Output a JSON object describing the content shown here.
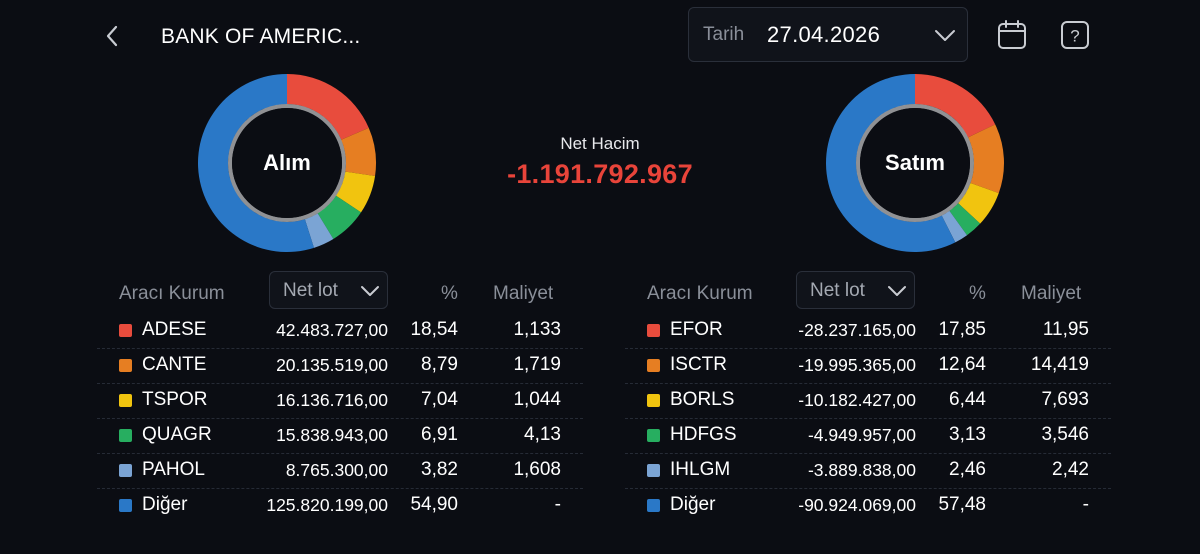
{
  "header": {
    "title": "BANK OF AMERIC...",
    "date_label": "Tarih",
    "date_value": "27.04.2026",
    "icons": [
      "back-arrow-icon",
      "chevron-down-icon",
      "calendar-icon",
      "help-icon"
    ]
  },
  "summary": {
    "net_label": "Net Hacim",
    "net_value": "-1.191.792.967",
    "net_color": "#e8443a"
  },
  "colors": {
    "red": "#e84c3d",
    "orange": "#e67e22",
    "yellow": "#f1c40f",
    "green": "#27ae60",
    "lightblue": "#7ba4d4",
    "blue": "#2a78c7"
  },
  "buy": {
    "donut_label": "Alım",
    "headers": {
      "broker": "Aracı Kurum",
      "lot": "Net lot",
      "pct": "%",
      "cost": "Maliyet"
    },
    "rows": [
      {
        "name": "ADESE",
        "lot": "42.483.727,00",
        "pct": "18,54",
        "cost": "1,133",
        "color": "#e84c3d",
        "share": 18.54
      },
      {
        "name": "CANTE",
        "lot": "20.135.519,00",
        "pct": "8,79",
        "cost": "1,719",
        "color": "#e67e22",
        "share": 8.79
      },
      {
        "name": "TSPOR",
        "lot": "16.136.716,00",
        "pct": "7,04",
        "cost": "1,044",
        "color": "#f1c40f",
        "share": 7.04
      },
      {
        "name": "QUAGR",
        "lot": "15.838.943,00",
        "pct": "6,91",
        "cost": "4,13",
        "color": "#27ae60",
        "share": 6.91
      },
      {
        "name": "PAHOL",
        "lot": "8.765.300,00",
        "pct": "3,82",
        "cost": "1,608",
        "color": "#7ba4d4",
        "share": 3.82
      },
      {
        "name": "Diğer",
        "lot": "125.820.199,00",
        "pct": "54,90",
        "cost": "-",
        "color": "#2a78c7",
        "share": 54.9
      }
    ]
  },
  "sell": {
    "donut_label": "Satım",
    "headers": {
      "broker": "Aracı Kurum",
      "lot": "Net lot",
      "pct": "%",
      "cost": "Maliyet"
    },
    "rows": [
      {
        "name": "EFOR",
        "lot": "-28.237.165,00",
        "pct": "17,85",
        "cost": "11,95",
        "color": "#e84c3d",
        "share": 17.85
      },
      {
        "name": "ISCTR",
        "lot": "-19.995.365,00",
        "pct": "12,64",
        "cost": "14,419",
        "color": "#e67e22",
        "share": 12.64
      },
      {
        "name": "BORLS",
        "lot": "-10.182.427,00",
        "pct": "6,44",
        "cost": "7,693",
        "color": "#f1c40f",
        "share": 6.44
      },
      {
        "name": "HDFGS",
        "lot": "-4.949.957,00",
        "pct": "3,13",
        "cost": "3,546",
        "color": "#27ae60",
        "share": 3.13
      },
      {
        "name": "IHLGM",
        "lot": "-3.889.838,00",
        "pct": "2,46",
        "cost": "2,42",
        "color": "#7ba4d4",
        "share": 2.46
      },
      {
        "name": "Diğer",
        "lot": "-90.924.069,00",
        "pct": "57,48",
        "cost": "-",
        "color": "#2a78c7",
        "share": 57.48
      }
    ]
  }
}
